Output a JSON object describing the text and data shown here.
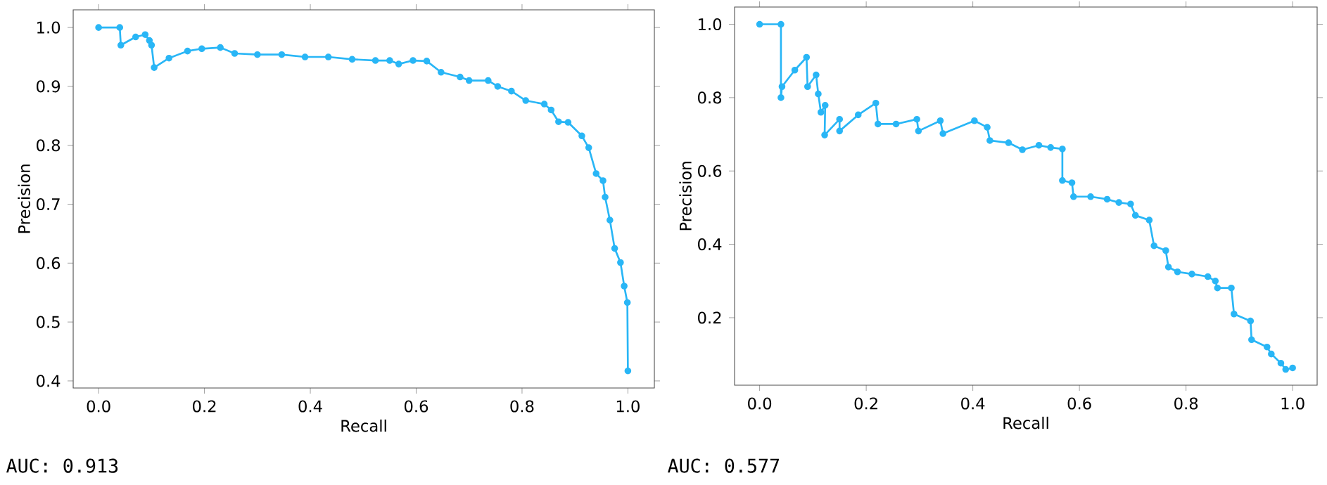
{
  "chart_data": [
    {
      "type": "line",
      "xlabel": "Recall",
      "ylabel": "Precision",
      "marker": "circle",
      "line_style": "solid",
      "xlim": [
        -0.048,
        1.05
      ],
      "ylim": [
        0.388,
        1.03
      ],
      "xticks": [
        {
          "value": 0,
          "label": "0.0"
        },
        {
          "value": 0.2,
          "label": "0.2"
        },
        {
          "value": 0.4,
          "label": "0.4"
        },
        {
          "value": 0.6,
          "label": "0.6"
        },
        {
          "value": 0.8,
          "label": "0.8"
        },
        {
          "value": 1.0,
          "label": "1.0"
        }
      ],
      "yticks": [
        {
          "value": 0.4,
          "label": "0.4"
        },
        {
          "value": 0.5,
          "label": "0.5"
        },
        {
          "value": 0.6,
          "label": "0.6"
        },
        {
          "value": 0.7,
          "label": "0.7"
        },
        {
          "value": 0.8,
          "label": "0.8"
        },
        {
          "value": 0.9,
          "label": "0.9"
        },
        {
          "value": 1.0,
          "label": "1.0"
        }
      ],
      "annotations": [
        "AUC: 0.913"
      ],
      "series": [
        {
          "color": "#29b6f6",
          "x": [
            0,
            0.04,
            0.042,
            0.07,
            0.088,
            0.096,
            0.1,
            0.105,
            0.133,
            0.168,
            0.195,
            0.23,
            0.257,
            0.3,
            0.346,
            0.39,
            0.434,
            0.479,
            0.523,
            0.55,
            0.567,
            0.594,
            0.62,
            0.647,
            0.683,
            0.7,
            0.736,
            0.754,
            0.78,
            0.807,
            0.842,
            0.855,
            0.869,
            0.887,
            0.913,
            0.926,
            0.94,
            0.953,
            0.957,
            0.966,
            0.975,
            0.986,
            0.993,
            0.999,
            1.0
          ],
          "values": [
            1.0,
            1.0,
            0.97,
            0.984,
            0.988,
            0.978,
            0.97,
            0.932,
            0.948,
            0.96,
            0.964,
            0.966,
            0.956,
            0.954,
            0.954,
            0.95,
            0.95,
            0.946,
            0.944,
            0.944,
            0.938,
            0.944,
            0.943,
            0.924,
            0.916,
            0.91,
            0.91,
            0.9,
            0.892,
            0.876,
            0.87,
            0.86,
            0.84,
            0.839,
            0.816,
            0.796,
            0.752,
            0.74,
            0.712,
            0.673,
            0.625,
            0.601,
            0.561,
            0.533,
            0.417
          ]
        }
      ]
    },
    {
      "type": "line",
      "xlabel": "Recall",
      "ylabel": "Precision",
      "marker": "circle",
      "line_style": "solid",
      "xlim": [
        -0.047,
        1.046
      ],
      "ylim": [
        0.016,
        1.047
      ],
      "xticks": [
        {
          "value": 0,
          "label": "0.0"
        },
        {
          "value": 0.2,
          "label": "0.2"
        },
        {
          "value": 0.4,
          "label": "0.4"
        },
        {
          "value": 0.6,
          "label": "0.6"
        },
        {
          "value": 0.8,
          "label": "0.8"
        },
        {
          "value": 1.0,
          "label": "1.0"
        }
      ],
      "yticks": [
        {
          "value": 0.2,
          "label": "0.2"
        },
        {
          "value": 0.4,
          "label": "0.4"
        },
        {
          "value": 0.6,
          "label": "0.6"
        },
        {
          "value": 0.8,
          "label": "0.8"
        },
        {
          "value": 1.0,
          "label": "1.0"
        }
      ],
      "annotations": [
        "AUC: 0.577"
      ],
      "series": [
        {
          "color": "#29b6f6",
          "x": [
            0,
            0.04,
            0.04,
            0.042,
            0.066,
            0.088,
            0.09,
            0.106,
            0.11,
            0.115,
            0.123,
            0.122,
            0.15,
            0.15,
            0.185,
            0.218,
            0.222,
            0.256,
            0.295,
            0.298,
            0.339,
            0.344,
            0.403,
            0.427,
            0.432,
            0.467,
            0.493,
            0.524,
            0.546,
            0.568,
            0.568,
            0.586,
            0.589,
            0.621,
            0.652,
            0.674,
            0.696,
            0.705,
            0.731,
            0.74,
            0.762,
            0.767,
            0.784,
            0.811,
            0.841,
            0.855,
            0.859,
            0.885,
            0.89,
            0.921,
            0.923,
            0.952,
            0.96,
            0.978,
            0.987,
            1.0
          ],
          "values": [
            1.0,
            1.0,
            0.8,
            0.83,
            0.875,
            0.91,
            0.83,
            0.862,
            0.81,
            0.76,
            0.779,
            0.698,
            0.741,
            0.709,
            0.753,
            0.785,
            0.728,
            0.728,
            0.741,
            0.709,
            0.737,
            0.702,
            0.737,
            0.719,
            0.683,
            0.677,
            0.658,
            0.67,
            0.664,
            0.66,
            0.574,
            0.568,
            0.53,
            0.53,
            0.523,
            0.514,
            0.51,
            0.479,
            0.466,
            0.396,
            0.383,
            0.338,
            0.325,
            0.319,
            0.312,
            0.3,
            0.281,
            0.281,
            0.21,
            0.191,
            0.14,
            0.12,
            0.101,
            0.076,
            0.059,
            0.063
          ]
        }
      ]
    }
  ]
}
